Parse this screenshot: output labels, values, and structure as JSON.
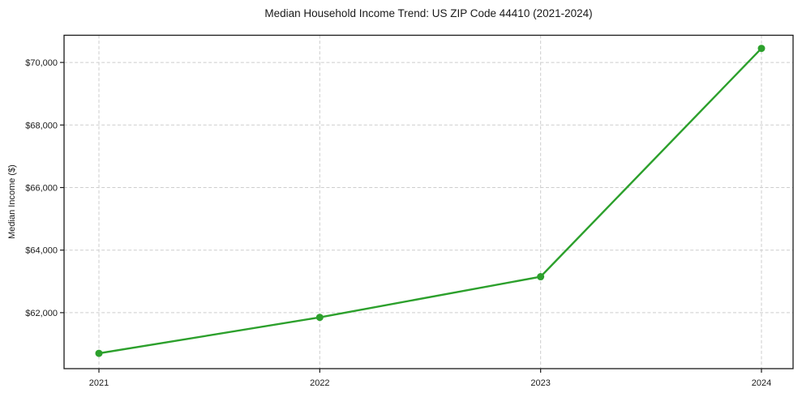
{
  "chart_data": {
    "type": "line",
    "title": "Median Household Income Trend: US ZIP Code 44410 (2021-2024)",
    "xlabel": "",
    "ylabel": "Median Income ($)",
    "categories": [
      "2021",
      "2022",
      "2023",
      "2024"
    ],
    "series": [
      {
        "values": [
          60700,
          61850,
          63150,
          70450
        ]
      }
    ],
    "yticks": {
      "values": [
        62000,
        64000,
        66000,
        68000,
        70000
      ],
      "labels": [
        "$62,000",
        "$64,000",
        "$66,000",
        "$68,000",
        "$70,000"
      ]
    },
    "ylim": [
      60210,
      70870
    ],
    "grid": true,
    "grid_style": "dashed",
    "legend": "none",
    "line_color": "#2ca02c",
    "marker": "circle",
    "marker_color": "#2ca02c",
    "frame_color": "#1a1a1a",
    "grid_color": "#cdcdcd",
    "background": "#ffffff"
  }
}
